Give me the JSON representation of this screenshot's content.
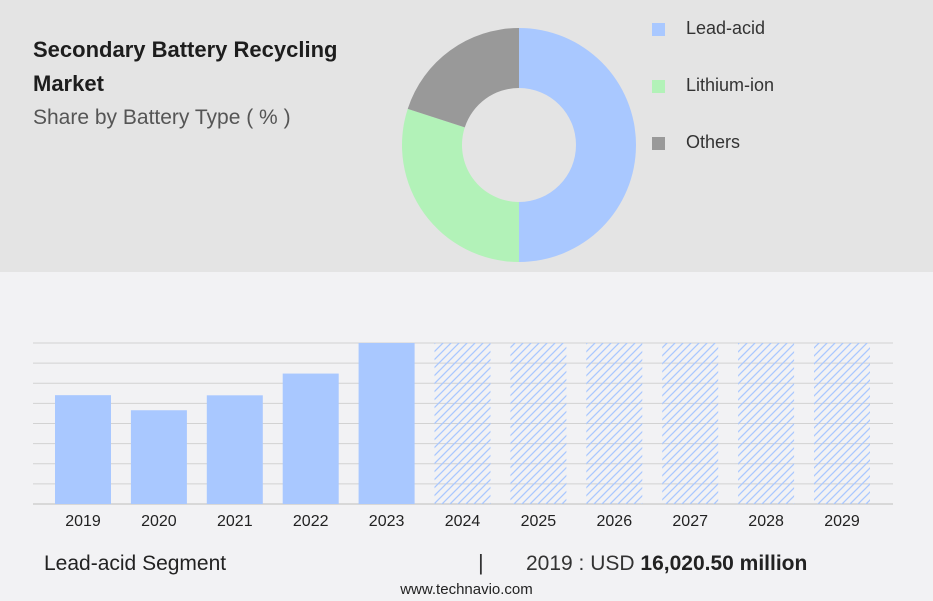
{
  "header": {
    "title": "Secondary Battery Recycling Market",
    "subtitle": "Share by Battery Type ( % )"
  },
  "chart_data": [
    {
      "type": "pie",
      "variant": "donut",
      "labels": [
        "Lead-acid",
        "Lithium-ion",
        "Others"
      ],
      "values": [
        50,
        30,
        20
      ],
      "colors": [
        "#a9c8ff",
        "#b2f2b8",
        "#999999"
      ],
      "legend": "right"
    },
    {
      "type": "bar",
      "categories": [
        "2019",
        "2020",
        "2021",
        "2022",
        "2023",
        "2024",
        "2025",
        "2026",
        "2027",
        "2028",
        "2029"
      ],
      "values": [
        16020.5,
        13800,
        16000,
        19200,
        23700,
        23700,
        23700,
        23700,
        23700,
        23700,
        23700
      ],
      "forecast_from": "2024",
      "color": "#a9c8ff",
      "ylim": [
        0,
        23700
      ],
      "grid": true
    }
  ],
  "footer": {
    "segment": "Lead-acid Segment",
    "divider": "|",
    "year_label": "2019 : USD",
    "value_label": "16,020.50 million"
  },
  "source": "www.technavio.com"
}
